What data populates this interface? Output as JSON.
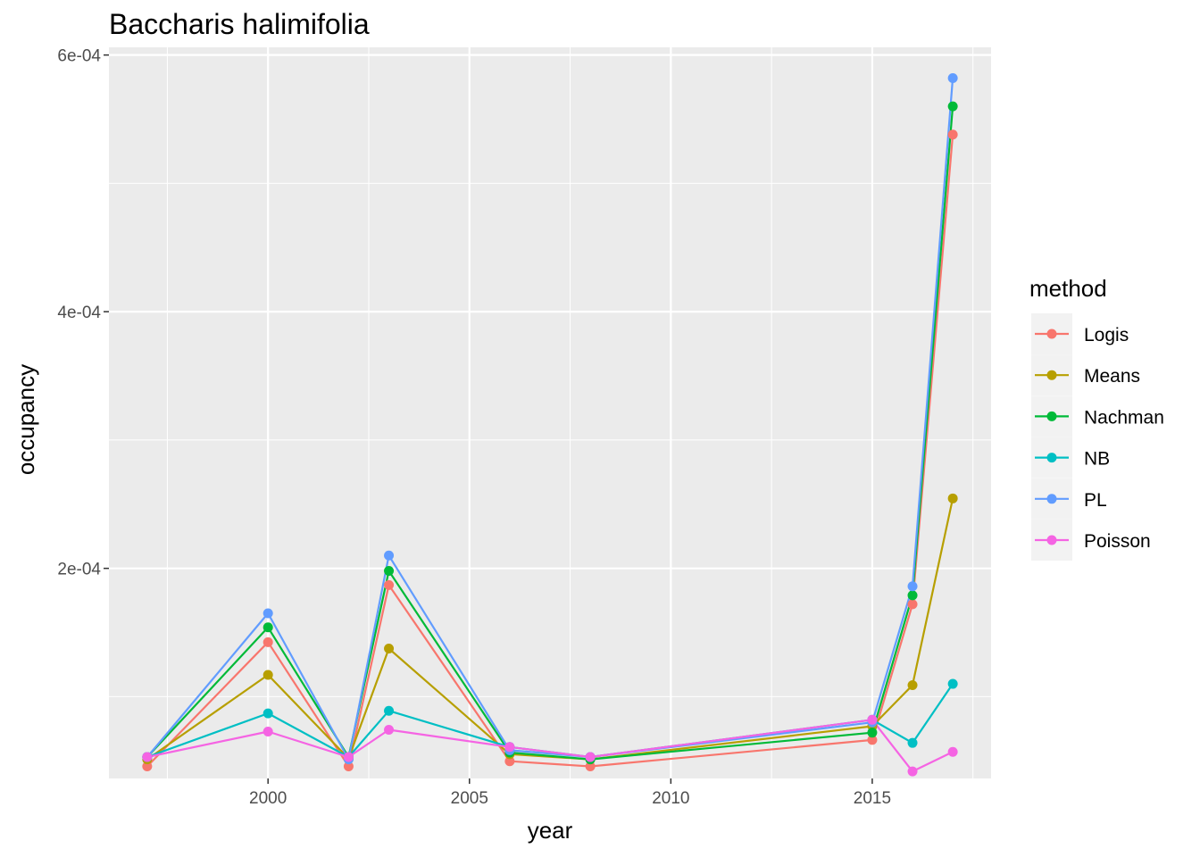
{
  "chart_data": {
    "type": "line",
    "title": "Baccharis halimifolia",
    "xlabel": "year",
    "ylabel": "occupancy",
    "x": [
      1997,
      2000,
      2002,
      2003,
      2006,
      2008,
      2015,
      2016,
      2017
    ],
    "xlim": [
      1996.05,
      2017.95
    ],
    "ylim": [
      3.63e-05,
      0.000606
    ],
    "x_ticks": [
      2000,
      2005,
      2010,
      2015
    ],
    "x_tick_labels": [
      "2000",
      "2005",
      "2010",
      "2015"
    ],
    "y_ticks": [
      0.0002,
      0.0004,
      0.0006
    ],
    "y_tick_labels": [
      "2e-04",
      "4e-04",
      "6e-04"
    ],
    "grid": true,
    "legend_title": "method",
    "legend_position": "right",
    "series": [
      {
        "name": "Logis",
        "color": "#F8766D",
        "values": [
          4.57e-05,
          0.0001425,
          4.57e-05,
          0.000187,
          4.97e-05,
          4.57e-05,
          6.63e-05,
          0.000172,
          0.000538
        ]
      },
      {
        "name": "Means",
        "color": "#B79F00",
        "values": [
          5.12e-05,
          0.000117,
          5.18e-05,
          0.0001375,
          5.52e-05,
          5.12e-05,
          7.7e-05,
          0.000109,
          0.0002545
        ]
      },
      {
        "name": "Nachman",
        "color": "#00BA38",
        "values": [
          5.3e-05,
          0.000154,
          5.3e-05,
          0.000198,
          5.65e-05,
          5.12e-05,
          7.2e-05,
          0.000179,
          0.00056
        ]
      },
      {
        "name": "NB",
        "color": "#00BFC4",
        "values": [
          5.3e-05,
          8.7e-05,
          5.3e-05,
          8.9e-05,
          6.08e-05,
          5.3e-05,
          8.2e-05,
          6.4e-05,
          0.00011
        ]
      },
      {
        "name": "PL",
        "color": "#619CFF",
        "values": [
          5.3e-05,
          0.000165,
          5.12e-05,
          0.00021,
          5.83e-05,
          5.3e-05,
          8e-05,
          0.000186,
          0.000582
        ]
      },
      {
        "name": "Poisson",
        "color": "#F564E3",
        "values": [
          5.3e-05,
          7.28e-05,
          5.3e-05,
          7.42e-05,
          6.08e-05,
          5.3e-05,
          8.2e-05,
          4.18e-05,
          5.7e-05
        ]
      }
    ]
  }
}
